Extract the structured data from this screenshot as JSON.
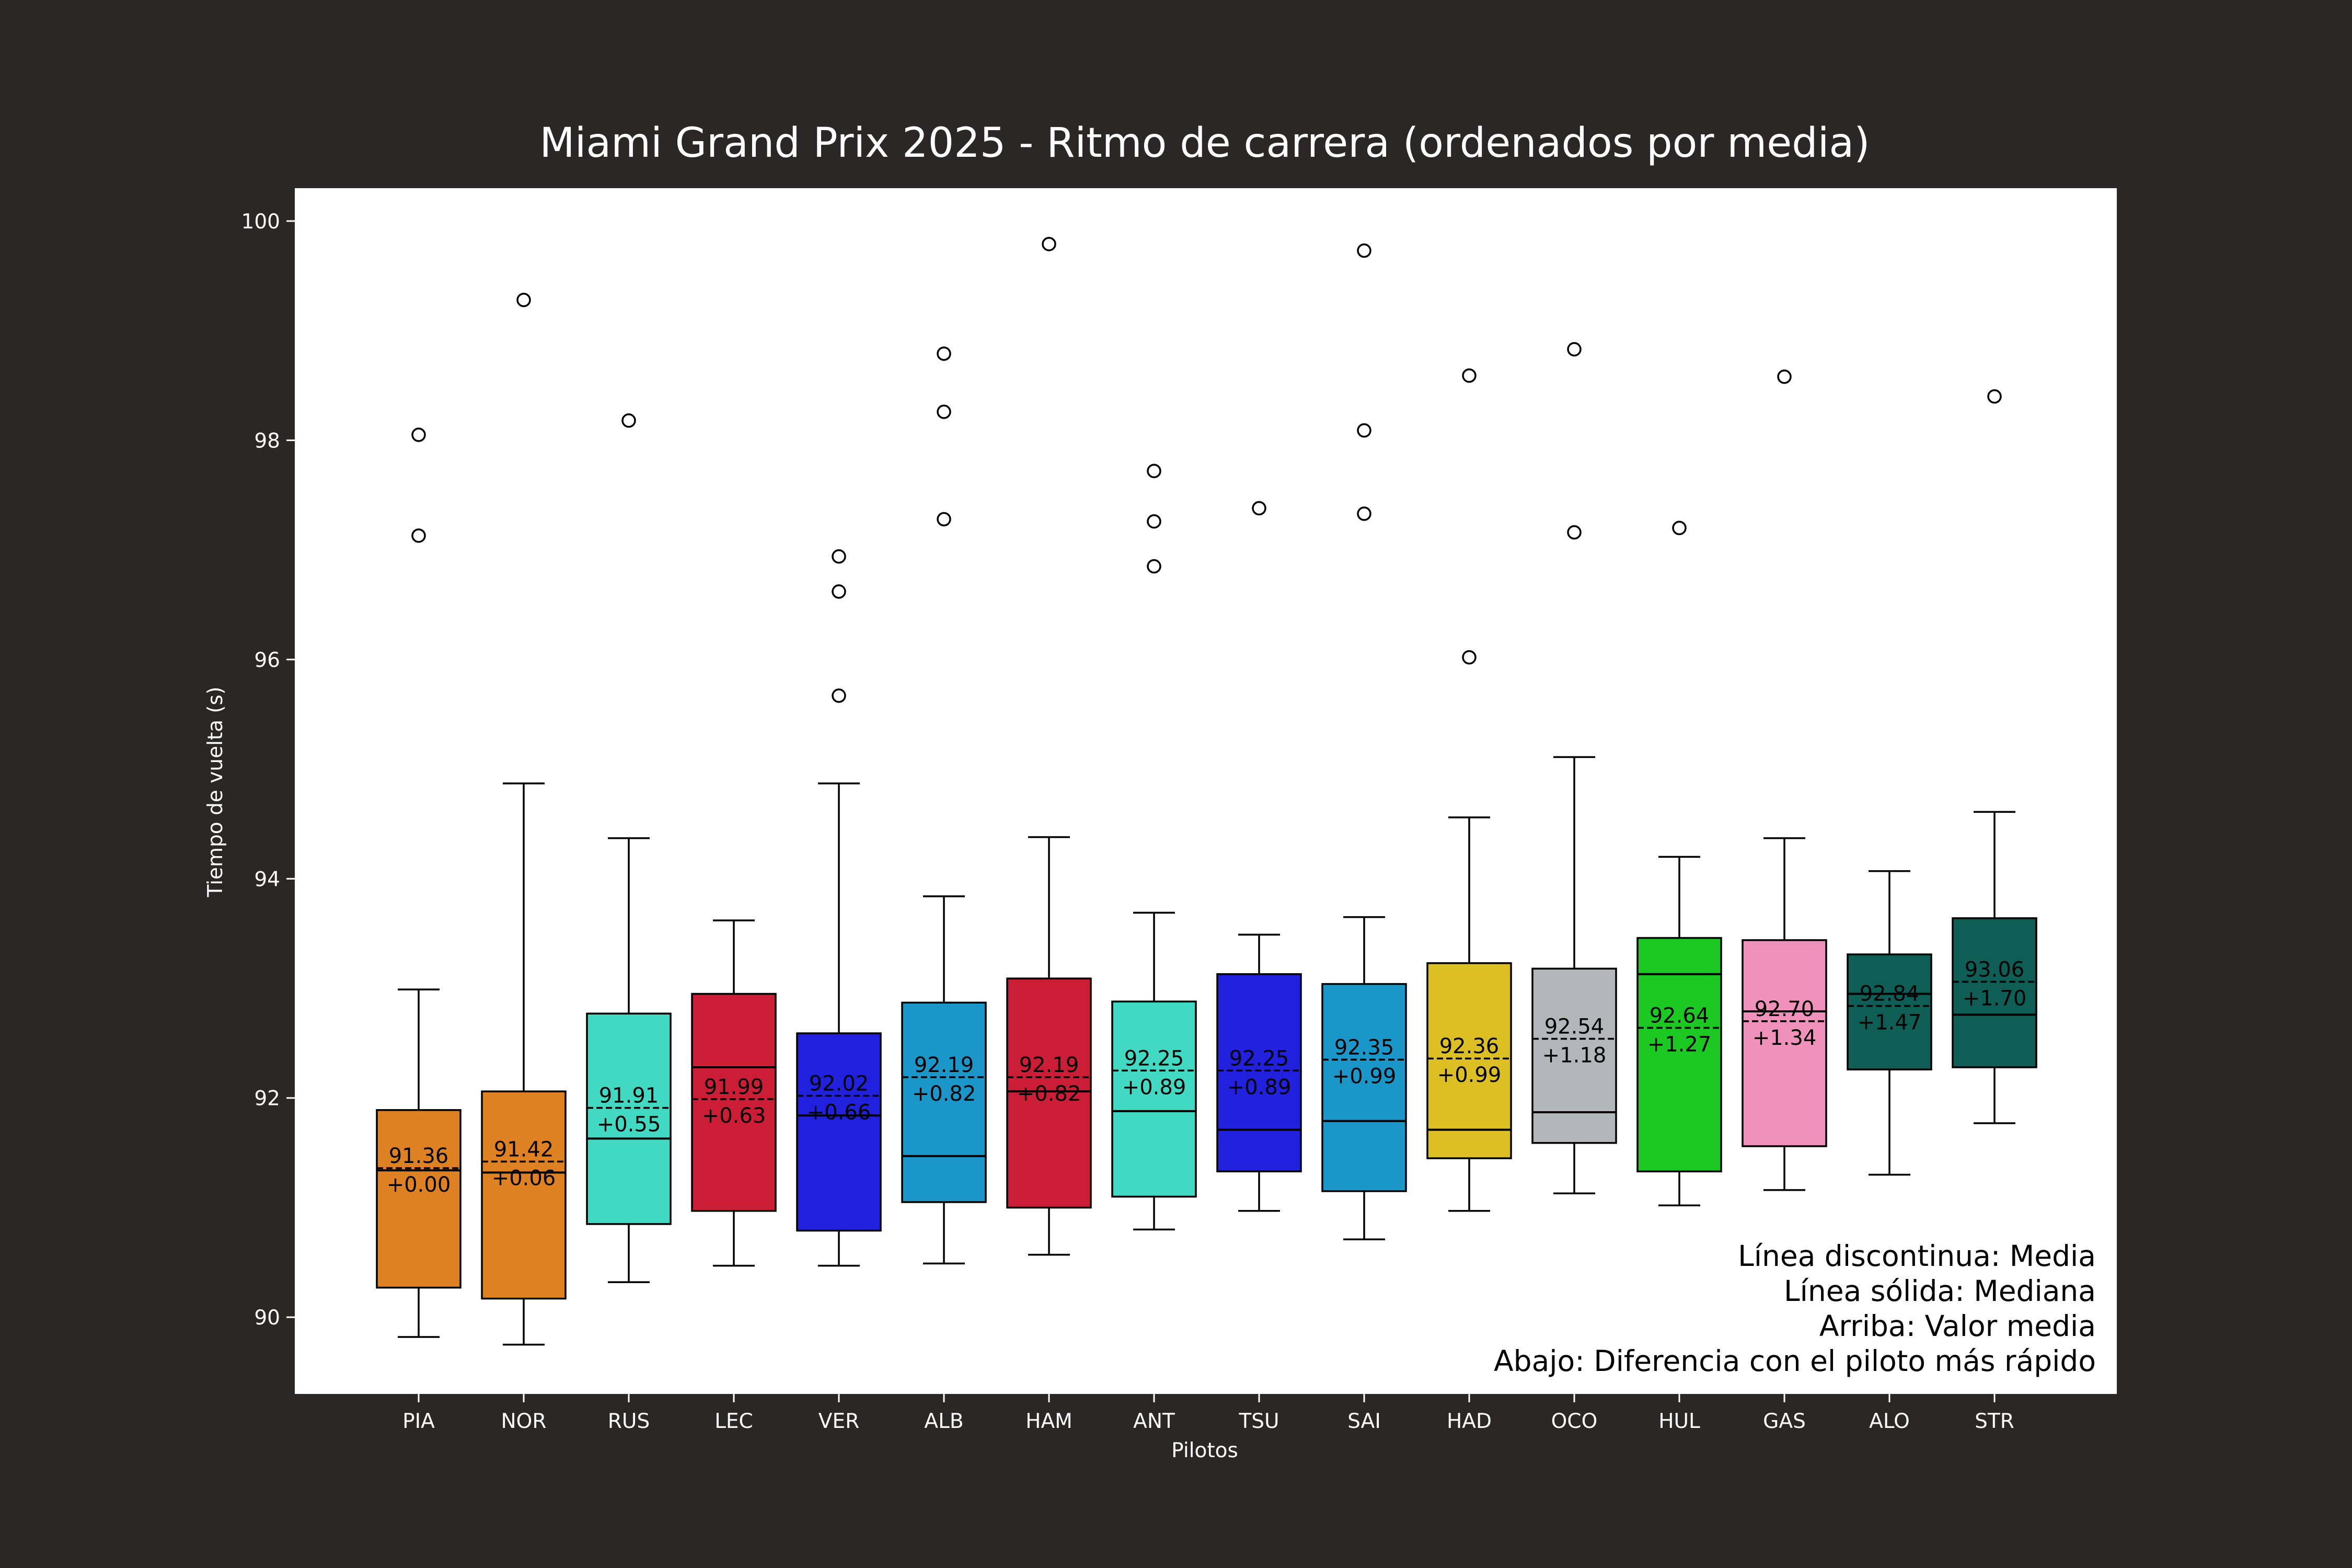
{
  "colors": {
    "figure_bg": "#2a2726",
    "plot_bg": "#ffffff",
    "figure_text": "#ffffff",
    "plot_text": "#000000"
  },
  "chart_data": {
    "type": "box",
    "title": "Miami Grand Prix 2025 - Ritmo de carrera (ordenados por media)",
    "xlabel": "Pilotos",
    "ylabel": "Tiempo de vuelta (s)",
    "ylim": [
      89.3,
      100.3
    ],
    "yticks": [
      90,
      92,
      94,
      96,
      98,
      100
    ],
    "grid": false,
    "legend_text": [
      "Línea discontinua: Media",
      "Línea sólida: Mediana",
      "Arriba: Valor media",
      "Abajo: Diferencia con el piloto más rápido"
    ],
    "legend_placement": "bottom-right",
    "boxes": [
      {
        "driver": "PIA",
        "color": "#dd8122",
        "whisker_low": 89.82,
        "q1": 90.27,
        "median": 91.34,
        "mean": 91.36,
        "q3": 91.89,
        "whisker_high": 92.99,
        "outliers": [
          97.13,
          98.05
        ],
        "mean_label": "91.36",
        "delta_label": "+0.00"
      },
      {
        "driver": "NOR",
        "color": "#dd8122",
        "whisker_low": 89.75,
        "q1": 90.17,
        "median": 91.32,
        "mean": 91.42,
        "q3": 92.06,
        "whisker_high": 94.87,
        "outliers": [
          99.28
        ],
        "mean_label": "91.42",
        "delta_label": "+0.06"
      },
      {
        "driver": "RUS",
        "color": "#41d9c2",
        "whisker_low": 90.32,
        "q1": 90.85,
        "median": 91.63,
        "mean": 91.91,
        "q3": 92.77,
        "whisker_high": 94.37,
        "outliers": [
          98.18
        ],
        "mean_label": "91.91",
        "delta_label": "+0.55"
      },
      {
        "driver": "LEC",
        "color": "#cb1d36",
        "whisker_low": 90.47,
        "q1": 90.97,
        "median": 92.28,
        "mean": 91.99,
        "q3": 92.95,
        "whisker_high": 93.62,
        "outliers": [],
        "mean_label": "91.99",
        "delta_label": "+0.63"
      },
      {
        "driver": "VER",
        "color": "#2020dd",
        "whisker_low": 90.47,
        "q1": 90.79,
        "median": 91.84,
        "mean": 92.02,
        "q3": 92.59,
        "whisker_high": 94.87,
        "outliers": [
          95.67,
          96.62,
          96.94
        ],
        "mean_label": "92.02",
        "delta_label": "+0.66"
      },
      {
        "driver": "ALB",
        "color": "#1a96c8",
        "whisker_low": 90.49,
        "q1": 91.05,
        "median": 91.47,
        "mean": 92.19,
        "q3": 92.87,
        "whisker_high": 93.84,
        "outliers": [
          97.28,
          98.26,
          98.79
        ],
        "mean_label": "92.19",
        "delta_label": "+0.82"
      },
      {
        "driver": "HAM",
        "color": "#cb1d36",
        "whisker_low": 90.57,
        "q1": 91.0,
        "median": 92.06,
        "mean": 92.19,
        "q3": 93.09,
        "whisker_high": 94.38,
        "outliers": [
          99.79
        ],
        "mean_label": "92.19",
        "delta_label": "+0.82"
      },
      {
        "driver": "ANT",
        "color": "#41d9c2",
        "whisker_low": 90.8,
        "q1": 91.1,
        "median": 91.88,
        "mean": 92.25,
        "q3": 92.88,
        "whisker_high": 93.69,
        "outliers": [
          96.85,
          97.26,
          97.72
        ],
        "mean_label": "92.25",
        "delta_label": "+0.89"
      },
      {
        "driver": "TSU",
        "color": "#2020dd",
        "whisker_low": 90.97,
        "q1": 91.33,
        "median": 91.71,
        "mean": 92.25,
        "q3": 93.13,
        "whisker_high": 93.49,
        "outliers": [
          97.38
        ],
        "mean_label": "92.25",
        "delta_label": "+0.89"
      },
      {
        "driver": "SAI",
        "color": "#1a96c8",
        "whisker_low": 90.71,
        "q1": 91.15,
        "median": 91.79,
        "mean": 92.35,
        "q3": 93.04,
        "whisker_high": 93.65,
        "outliers": [
          97.33,
          98.09,
          99.73
        ],
        "mean_label": "92.35",
        "delta_label": "+0.99"
      },
      {
        "driver": "HAD",
        "color": "#dbbf23",
        "whisker_low": 90.97,
        "q1": 91.45,
        "median": 91.71,
        "mean": 92.36,
        "q3": 93.23,
        "whisker_high": 94.56,
        "outliers": [
          96.02,
          98.59
        ],
        "mean_label": "92.36",
        "delta_label": "+0.99"
      },
      {
        "driver": "OCO",
        "color": "#b3b6ba",
        "whisker_low": 91.13,
        "q1": 91.59,
        "median": 91.87,
        "mean": 92.54,
        "q3": 93.18,
        "whisker_high": 95.11,
        "outliers": [
          97.16,
          98.83
        ],
        "mean_label": "92.54",
        "delta_label": "+1.18"
      },
      {
        "driver": "HUL",
        "color": "#1cc922",
        "whisker_low": 91.02,
        "q1": 91.33,
        "median": 93.13,
        "mean": 92.64,
        "q3": 93.46,
        "whisker_high": 94.2,
        "outliers": [
          97.2
        ],
        "mean_label": "92.64",
        "delta_label": "+1.27"
      },
      {
        "driver": "GAS",
        "color": "#f091bc",
        "whisker_low": 91.16,
        "q1": 91.56,
        "median": 92.79,
        "mean": 92.7,
        "q3": 93.44,
        "whisker_high": 94.37,
        "outliers": [
          98.58
        ],
        "mean_label": "92.70",
        "delta_label": "+1.34"
      },
      {
        "driver": "ALO",
        "color": "#0f5e55",
        "whisker_low": 91.3,
        "q1": 92.26,
        "median": 92.95,
        "mean": 92.84,
        "q3": 93.31,
        "whisker_high": 94.07,
        "outliers": [],
        "mean_label": "92.84",
        "delta_label": "+1.47"
      },
      {
        "driver": "STR",
        "color": "#0f5e55",
        "whisker_low": 91.77,
        "q1": 92.28,
        "median": 92.76,
        "mean": 93.06,
        "q3": 93.64,
        "whisker_high": 94.61,
        "outliers": [
          98.4
        ],
        "mean_label": "93.06",
        "delta_label": "+1.70"
      }
    ]
  }
}
